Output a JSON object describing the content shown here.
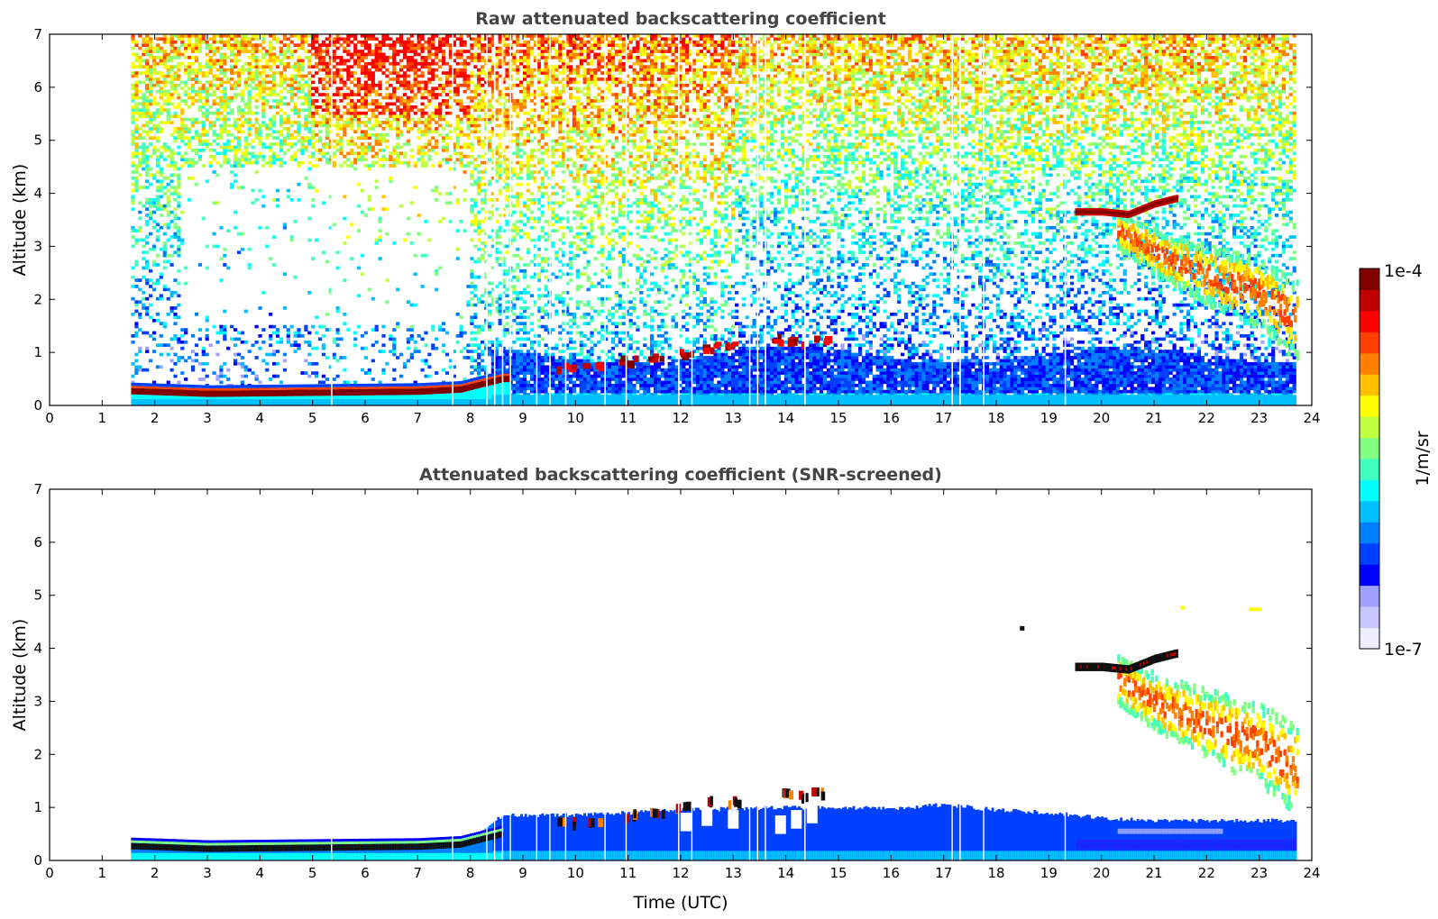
{
  "chart_data": [
    {
      "type": "heatmap",
      "title": "Raw attenuated backscattering coefficient",
      "xlabel": "",
      "ylabel": "Altitude (km)",
      "xlim": [
        0,
        24
      ],
      "ylim": [
        0,
        7
      ],
      "x_ticks": [
        "0",
        "1",
        "2",
        "3",
        "4",
        "5",
        "6",
        "7",
        "8",
        "9",
        "10",
        "11",
        "12",
        "13",
        "14",
        "15",
        "16",
        "17",
        "18",
        "19",
        "20",
        "21",
        "22",
        "23",
        "24"
      ],
      "y_ticks": [
        "0",
        "1",
        "2",
        "3",
        "4",
        "5",
        "6",
        "7"
      ],
      "data_time_range": [
        1.55,
        23.7
      ],
      "features": [
        {
          "kind": "boundary-layer-top",
          "points": [
            [
              1.55,
              0.27
            ],
            [
              3,
              0.22
            ],
            [
              5,
              0.24
            ],
            [
              7,
              0.26
            ],
            [
              7.8,
              0.3
            ],
            [
              8.2,
              0.4
            ],
            [
              8.6,
              0.5
            ]
          ]
        },
        {
          "kind": "cloud-fragments",
          "points": [
            [
              9.8,
              0.7
            ],
            [
              10.3,
              0.75
            ],
            [
              11,
              0.85
            ],
            [
              11.5,
              0.9
            ],
            [
              12,
              1.0
            ],
            [
              12.5,
              1.1
            ],
            [
              13,
              1.1
            ],
            [
              13.9,
              1.25
            ],
            [
              14.2,
              1.2
            ],
            [
              14.6,
              1.25
            ]
          ]
        },
        {
          "kind": "mid-level-cloud",
          "points": [
            [
              19.5,
              3.65
            ],
            [
              20,
              3.65
            ],
            [
              20.5,
              3.6
            ],
            [
              21,
              3.8
            ],
            [
              21.4,
              3.9
            ]
          ]
        },
        {
          "kind": "descending-aerosol-layer",
          "points": [
            [
              20.3,
              3.3
            ],
            [
              20.8,
              3.0
            ],
            [
              21.2,
              2.8
            ],
            [
              22,
              2.45
            ],
            [
              23,
              2.1
            ],
            [
              23.7,
              1.6
            ]
          ]
        }
      ]
    },
    {
      "type": "heatmap",
      "title": "Attenuated backscattering coefficient (SNR-screened)",
      "xlabel": "Time (UTC)",
      "ylabel": "Altitude (km)",
      "xlim": [
        0,
        24
      ],
      "ylim": [
        0,
        7
      ],
      "x_ticks": [
        "0",
        "1",
        "2",
        "3",
        "4",
        "5",
        "6",
        "7",
        "8",
        "9",
        "10",
        "11",
        "12",
        "13",
        "14",
        "15",
        "16",
        "17",
        "18",
        "19",
        "20",
        "21",
        "22",
        "23",
        "24"
      ],
      "y_ticks": [
        "0",
        "1",
        "2",
        "3",
        "4",
        "5",
        "6",
        "7"
      ],
      "data_time_range": [
        1.55,
        23.7
      ],
      "valid_top_profile": [
        [
          1.55,
          0.42
        ],
        [
          4,
          0.35
        ],
        [
          6,
          0.36
        ],
        [
          7.6,
          0.4
        ],
        [
          8.2,
          0.55
        ],
        [
          8.6,
          0.85
        ],
        [
          10,
          0.85
        ],
        [
          12,
          0.95
        ],
        [
          14,
          1.0
        ],
        [
          16,
          0.98
        ],
        [
          17,
          1.05
        ],
        [
          18,
          0.95
        ],
        [
          19,
          0.9
        ],
        [
          20,
          0.8
        ],
        [
          21,
          0.75
        ],
        [
          23.7,
          0.75
        ]
      ]
    }
  ],
  "colorbar": {
    "label": "1/m/sr",
    "max_label": "1e-4",
    "min_label": "1e-7",
    "scale": "log",
    "colors": [
      "#eeeeff",
      "#c8c8ff",
      "#a0a0ff",
      "#0000ff",
      "#0040ff",
      "#0080ff",
      "#00c0ff",
      "#00ffff",
      "#40ffc0",
      "#80ff80",
      "#c0ff40",
      "#ffff00",
      "#ffc000",
      "#ff8000",
      "#ff4000",
      "#ff0000",
      "#c00000",
      "#800000"
    ]
  }
}
